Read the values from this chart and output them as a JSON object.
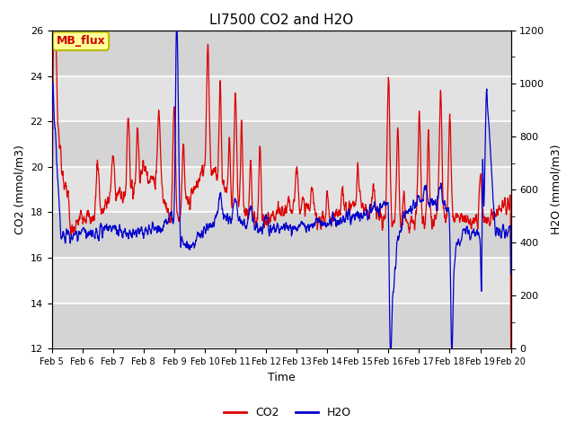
{
  "title": "LI7500 CO2 and H2O",
  "xlabel": "Time",
  "ylabel_left": "CO2 (mmol/m3)",
  "ylabel_right": "H2O (mmol/m3)",
  "ylim_left": [
    12,
    26
  ],
  "ylim_right": [
    0,
    1200
  ],
  "co2_color": "#dd0000",
  "h2o_color": "#0000cc",
  "plot_bg_color": "#e8e8e8",
  "legend_label_co2": "CO2",
  "legend_label_h2o": "H2O",
  "annotation_text": "MB_flux",
  "annotation_bg": "#ffff99",
  "annotation_border": "#bbbb00",
  "grid_color": "white",
  "band_color_light": "#d8d8d8",
  "band_color_dark": "#c8c8c8",
  "title_fontsize": 11,
  "axis_fontsize": 9,
  "tick_fontsize": 8,
  "legend_fontsize": 9,
  "num_points": 2000
}
